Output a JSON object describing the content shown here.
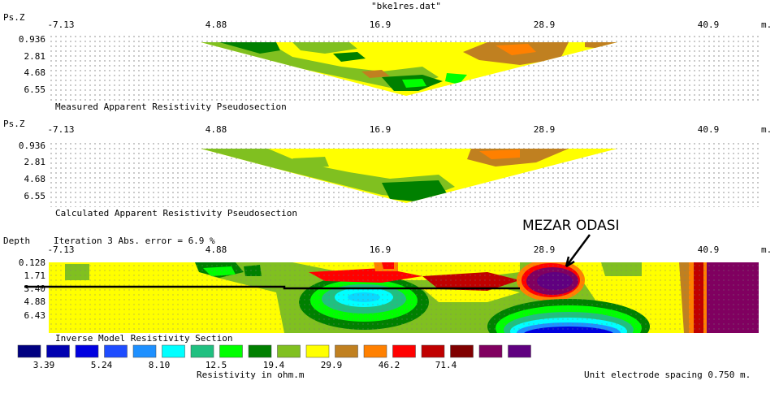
{
  "file_title": "\"bke1res.dat\"",
  "colors": {
    "scale": [
      "#000080",
      "#0000b0",
      "#0000e0",
      "#1e4cff",
      "#1e90ff",
      "#00ffff",
      "#20c080",
      "#00ff00",
      "#008000",
      "#80c020",
      "#ffff00",
      "#c08020",
      "#ff8000",
      "#ff0000",
      "#c00000",
      "#800000",
      "#800060",
      "#600080"
    ]
  },
  "chart_data": [
    {
      "type": "heatmap",
      "title": "Measured Apparent Resistivity Pseudosection",
      "ylabel": "Ps.Z",
      "x_ticks": [
        "-7.13",
        "4.88",
        "16.9",
        "28.9",
        "40.9"
      ],
      "x_unit": "m.",
      "y_ticks": [
        "0.936",
        "2.81",
        "4.68",
        "6.55"
      ],
      "xlim": [
        -7.13,
        45.0
      ],
      "ylim": [
        0.0,
        7.6
      ]
    },
    {
      "type": "heatmap",
      "title": "Calculated Apparent Resistivity Pseudosection",
      "ylabel": "Ps.Z",
      "x_ticks": [
        "-7.13",
        "4.88",
        "16.9",
        "28.9",
        "40.9"
      ],
      "x_unit": "m.",
      "y_ticks": [
        "0.936",
        "2.81",
        "4.68",
        "6.55"
      ],
      "xlim": [
        -7.13,
        45.0
      ],
      "ylim": [
        0.0,
        7.6
      ]
    },
    {
      "type": "heatmap",
      "title": "Inverse Model Resistivity Section",
      "ylabel": "Depth",
      "iteration_text": "Iteration 3 Abs. error = 6.9 %",
      "x_ticks": [
        "-7.13",
        "4.88",
        "16.9",
        "28.9",
        "40.9"
      ],
      "x_unit": "m.",
      "y_ticks": [
        "0.128",
        "1.71",
        "3.40",
        "4.88",
        "6.43"
      ],
      "xlim": [
        -7.13,
        45.0
      ],
      "ylim": [
        0.0,
        7.8
      ],
      "annotation": "MEZAR ODASI"
    }
  ],
  "legend": {
    "labels": [
      "3.39",
      "5.24",
      "8.10",
      "12.5",
      "19.4",
      "29.9",
      "46.2",
      "71.4"
    ],
    "unit_label": "Resistivity in ohm.m"
  },
  "footer": {
    "spacing_text": "Unit electrode spacing 0.750 m."
  }
}
